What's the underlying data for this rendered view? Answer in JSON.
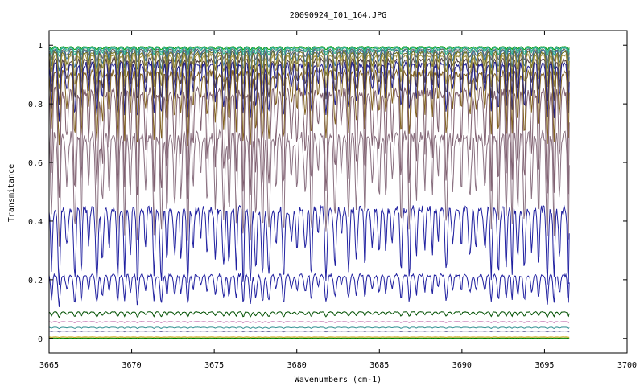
{
  "chart_data": {
    "type": "line",
    "title": "20090924_I01_164.JPG",
    "xlabel": "Wavenumbers (cm-1)",
    "ylabel": "Transmitance",
    "xlim": [
      3665,
      3700
    ],
    "ylim": [
      -0.05,
      1.05
    ],
    "x_ticks": [
      3665,
      3670,
      3675,
      3680,
      3685,
      3690,
      3695,
      3700
    ],
    "y_ticks": [
      0,
      0.2,
      0.4,
      0.6,
      0.8,
      1
    ],
    "grid": false,
    "legend": "none",
    "x_range_data": [
      3665,
      3696.5
    ],
    "series_color_list": [
      "#00a000",
      "#40a0a0",
      "#20b080",
      "#606060",
      "#3070a0",
      "#707020",
      "#a09040",
      "#504040",
      "#202090",
      "#806020",
      "#806070",
      "#8a7080",
      "#2020a0",
      "#2020a0",
      "#005000",
      "#d090c0",
      "#309090",
      "#7070a0",
      "#c0a000",
      "#008000"
    ],
    "series": [
      {
        "baseline": 0.995,
        "depth": 0.008
      },
      {
        "baseline": 0.992,
        "depth": 0.012
      },
      {
        "baseline": 0.99,
        "depth": 0.018
      },
      {
        "baseline": 0.985,
        "depth": 0.03
      },
      {
        "baseline": 0.98,
        "depth": 0.045
      },
      {
        "baseline": 0.975,
        "depth": 0.06
      },
      {
        "baseline": 0.965,
        "depth": 0.08
      },
      {
        "baseline": 0.95,
        "depth": 0.1
      },
      {
        "baseline": 0.935,
        "depth": 0.13
      },
      {
        "baseline": 0.905,
        "depth": 0.17
      },
      {
        "baseline": 0.84,
        "depth": 0.25
      },
      {
        "baseline": 0.69,
        "depth": 0.25
      },
      {
        "baseline": 0.44,
        "depth": 0.18
      },
      {
        "baseline": 0.215,
        "depth": 0.07
      },
      {
        "baseline": 0.09,
        "depth": 0.012
      },
      {
        "baseline": 0.058,
        "depth": 0.004
      },
      {
        "baseline": 0.038,
        "depth": 0.003
      },
      {
        "baseline": 0.025,
        "depth": 0.002
      },
      {
        "baseline": 0.005,
        "depth": 0.001
      },
      {
        "baseline": 0.001,
        "depth": 0.0005
      }
    ]
  }
}
